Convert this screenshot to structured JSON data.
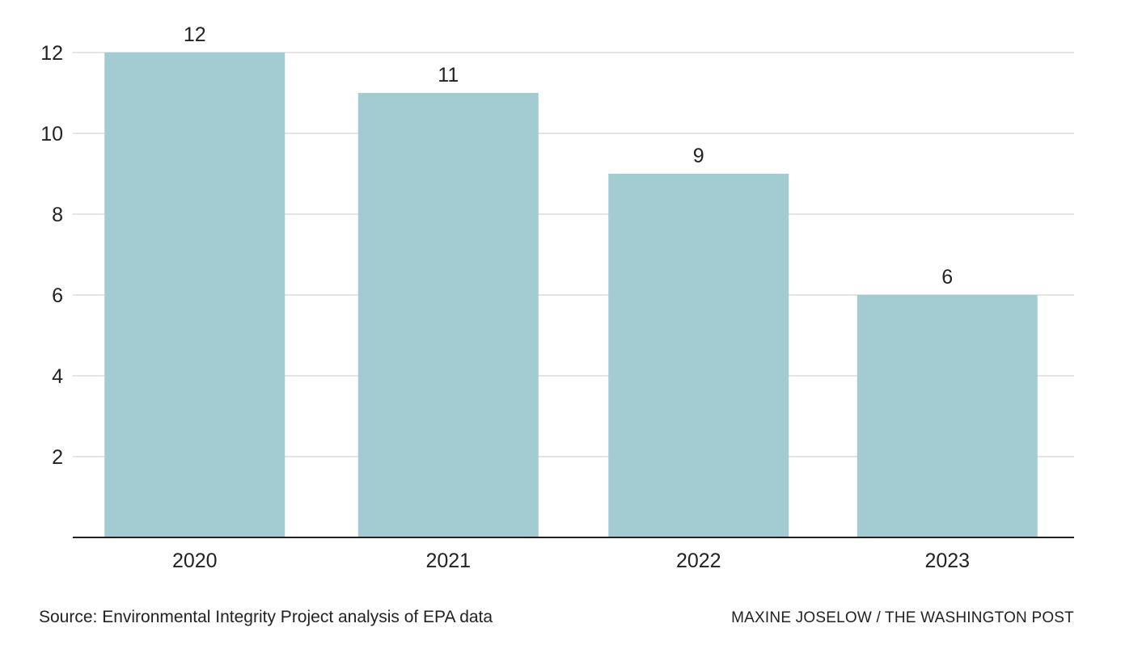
{
  "chart_data": {
    "type": "bar",
    "categories": [
      "2020",
      "2021",
      "2022",
      "2023"
    ],
    "values": [
      12,
      11,
      9,
      6
    ],
    "data_labels": [
      "12",
      "11",
      "9",
      "6"
    ],
    "ylim": [
      0,
      12
    ],
    "yticks": [
      2,
      4,
      6,
      8,
      10,
      12
    ],
    "ytick_labels": [
      "2",
      "4",
      "6",
      "8",
      "10",
      "12"
    ],
    "grid": true,
    "bar_color": "#a3cbd2",
    "grid_color": "#dcdcdc",
    "axis_color": "#222222"
  },
  "footer": {
    "source": "Source: Environmental Integrity Project analysis of EPA data",
    "credit": "MAXINE JOSELOW / THE WASHINGTON POST"
  }
}
